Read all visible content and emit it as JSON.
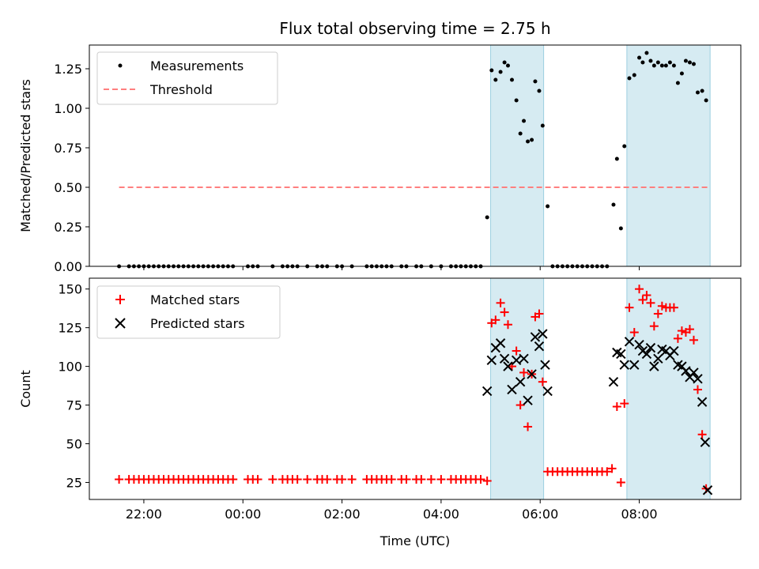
{
  "figure": {
    "title": "Flux total observing time = 2.75 h"
  },
  "chart_data": [
    {
      "type": "scatter",
      "title": "Flux total observing time = 2.75 h",
      "xlabel": "",
      "ylabel": "Matched/Predicted stars",
      "ylim": [
        0,
        1.4
      ],
      "yticks": [
        0.0,
        0.25,
        0.5,
        0.75,
        1.0,
        1.25
      ],
      "ytick_labels": [
        "0.00",
        "0.25",
        "0.50",
        "0.75",
        "1.00",
        "1.25"
      ],
      "grid": false,
      "legend": "top-left",
      "observing_windows": [
        [
          5.0,
          6.07
        ],
        [
          7.75,
          9.43
        ]
      ],
      "series": [
        {
          "name": "Measurements",
          "kind": "points",
          "color": "#000000",
          "points": [
            [
              -2.5,
              0
            ],
            [
              -2.3,
              0
            ],
            [
              -2.2,
              0
            ],
            [
              -2.1,
              0
            ],
            [
              -2.0,
              0
            ],
            [
              -1.9,
              0
            ],
            [
              -1.8,
              0
            ],
            [
              -1.7,
              0
            ],
            [
              -1.6,
              0
            ],
            [
              -1.5,
              0
            ],
            [
              -1.4,
              0
            ],
            [
              -1.3,
              0
            ],
            [
              -1.2,
              0
            ],
            [
              -1.1,
              0
            ],
            [
              -1.0,
              0
            ],
            [
              -0.9,
              0
            ],
            [
              -0.8,
              0
            ],
            [
              -0.7,
              0
            ],
            [
              -0.6,
              0
            ],
            [
              -0.5,
              0
            ],
            [
              -0.4,
              0
            ],
            [
              -0.3,
              0
            ],
            [
              -0.2,
              0
            ],
            [
              0.1,
              0
            ],
            [
              0.2,
              0
            ],
            [
              0.3,
              0
            ],
            [
              0.6,
              0
            ],
            [
              0.8,
              0
            ],
            [
              0.9,
              0
            ],
            [
              1.0,
              0
            ],
            [
              1.1,
              0
            ],
            [
              1.3,
              0
            ],
            [
              1.5,
              0
            ],
            [
              1.6,
              0
            ],
            [
              1.7,
              0
            ],
            [
              1.9,
              0
            ],
            [
              2.0,
              0
            ],
            [
              2.2,
              0
            ],
            [
              2.5,
              0
            ],
            [
              2.6,
              0
            ],
            [
              2.7,
              0
            ],
            [
              2.8,
              0
            ],
            [
              2.9,
              0
            ],
            [
              3.0,
              0
            ],
            [
              3.2,
              0
            ],
            [
              3.3,
              0
            ],
            [
              3.5,
              0
            ],
            [
              3.6,
              0
            ],
            [
              3.8,
              0
            ],
            [
              4.0,
              0
            ],
            [
              4.2,
              0
            ],
            [
              4.3,
              0
            ],
            [
              4.4,
              0
            ],
            [
              4.5,
              0
            ],
            [
              4.6,
              0
            ],
            [
              4.7,
              0
            ],
            [
              4.8,
              0
            ],
            [
              4.93,
              0.31
            ],
            [
              5.02,
              1.24
            ],
            [
              5.1,
              1.18
            ],
            [
              5.2,
              1.23
            ],
            [
              5.28,
              1.29
            ],
            [
              5.35,
              1.27
            ],
            [
              5.43,
              1.18
            ],
            [
              5.52,
              1.05
            ],
            [
              5.6,
              0.84
            ],
            [
              5.67,
              0.92
            ],
            [
              5.75,
              0.79
            ],
            [
              5.83,
              0.8
            ],
            [
              5.9,
              1.17
            ],
            [
              5.98,
              1.11
            ],
            [
              6.05,
              0.89
            ],
            [
              6.15,
              0.38
            ],
            [
              6.25,
              0
            ],
            [
              6.35,
              0
            ],
            [
              6.45,
              0
            ],
            [
              6.55,
              0
            ],
            [
              6.65,
              0
            ],
            [
              6.75,
              0
            ],
            [
              6.85,
              0
            ],
            [
              6.95,
              0
            ],
            [
              7.05,
              0
            ],
            [
              7.15,
              0
            ],
            [
              7.25,
              0
            ],
            [
              7.35,
              0
            ],
            [
              7.48,
              0.39
            ],
            [
              7.55,
              0.68
            ],
            [
              7.63,
              0.24
            ],
            [
              7.7,
              0.76
            ],
            [
              7.8,
              1.19
            ],
            [
              7.9,
              1.21
            ],
            [
              8.0,
              1.32
            ],
            [
              8.07,
              1.29
            ],
            [
              8.15,
              1.35
            ],
            [
              8.23,
              1.3
            ],
            [
              8.3,
              1.27
            ],
            [
              8.38,
              1.29
            ],
            [
              8.46,
              1.27
            ],
            [
              8.54,
              1.27
            ],
            [
              8.62,
              1.29
            ],
            [
              8.7,
              1.27
            ],
            [
              8.78,
              1.16
            ],
            [
              8.86,
              1.22
            ],
            [
              8.94,
              1.3
            ],
            [
              9.02,
              1.29
            ],
            [
              9.1,
              1.28
            ],
            [
              9.18,
              1.1
            ],
            [
              9.27,
              1.11
            ],
            [
              9.35,
              1.05
            ]
          ]
        },
        {
          "name": "Threshold",
          "kind": "dashed-line",
          "color": "#ff7f7f",
          "x": [
            -2.5,
            9.4
          ],
          "y": [
            0.5,
            0.5
          ]
        }
      ]
    },
    {
      "type": "scatter",
      "xlabel": "Time (UTC)",
      "ylabel": "Count",
      "ylim": [
        14,
        157
      ],
      "yticks": [
        25,
        50,
        75,
        100,
        125,
        150
      ],
      "ytick_labels": [
        "25",
        "50",
        "75",
        "100",
        "125",
        "150"
      ],
      "xticks": [
        -2,
        0,
        2,
        4,
        6,
        8
      ],
      "xtick_labels": [
        "22:00",
        "00:00",
        "02:00",
        "04:00",
        "06:00",
        "08:00"
      ],
      "xlim": [
        -3.1,
        10.05
      ],
      "grid": false,
      "legend": "top-left",
      "observing_windows": [
        [
          5.0,
          6.07
        ],
        [
          7.75,
          9.43
        ]
      ],
      "series": [
        {
          "name": "Matched stars",
          "marker": "plus",
          "color": "#ff0000",
          "points": [
            [
              -2.5,
              27
            ],
            [
              -2.3,
              27
            ],
            [
              -2.2,
              27
            ],
            [
              -2.1,
              27
            ],
            [
              -2.0,
              27
            ],
            [
              -1.9,
              27
            ],
            [
              -1.8,
              27
            ],
            [
              -1.7,
              27
            ],
            [
              -1.6,
              27
            ],
            [
              -1.5,
              27
            ],
            [
              -1.4,
              27
            ],
            [
              -1.3,
              27
            ],
            [
              -1.2,
              27
            ],
            [
              -1.1,
              27
            ],
            [
              -1.0,
              27
            ],
            [
              -0.9,
              27
            ],
            [
              -0.8,
              27
            ],
            [
              -0.7,
              27
            ],
            [
              -0.6,
              27
            ],
            [
              -0.5,
              27
            ],
            [
              -0.4,
              27
            ],
            [
              -0.3,
              27
            ],
            [
              -0.2,
              27
            ],
            [
              0.1,
              27
            ],
            [
              0.2,
              27
            ],
            [
              0.3,
              27
            ],
            [
              0.6,
              27
            ],
            [
              0.8,
              27
            ],
            [
              0.9,
              27
            ],
            [
              1.0,
              27
            ],
            [
              1.1,
              27
            ],
            [
              1.3,
              27
            ],
            [
              1.5,
              27
            ],
            [
              1.6,
              27
            ],
            [
              1.7,
              27
            ],
            [
              1.9,
              27
            ],
            [
              2.0,
              27
            ],
            [
              2.2,
              27
            ],
            [
              2.5,
              27
            ],
            [
              2.6,
              27
            ],
            [
              2.7,
              27
            ],
            [
              2.8,
              27
            ],
            [
              2.9,
              27
            ],
            [
              3.0,
              27
            ],
            [
              3.2,
              27
            ],
            [
              3.3,
              27
            ],
            [
              3.5,
              27
            ],
            [
              3.6,
              27
            ],
            [
              3.8,
              27
            ],
            [
              4.0,
              27
            ],
            [
              4.2,
              27
            ],
            [
              4.3,
              27
            ],
            [
              4.4,
              27
            ],
            [
              4.5,
              27
            ],
            [
              4.6,
              27
            ],
            [
              4.7,
              27
            ],
            [
              4.8,
              27
            ],
            [
              4.93,
              26
            ],
            [
              5.02,
              128
            ],
            [
              5.1,
              130
            ],
            [
              5.2,
              141
            ],
            [
              5.28,
              135
            ],
            [
              5.35,
              127
            ],
            [
              5.43,
              100
            ],
            [
              5.52,
              110
            ],
            [
              5.6,
              75
            ],
            [
              5.67,
              96
            ],
            [
              5.75,
              61
            ],
            [
              5.83,
              95
            ],
            [
              5.9,
              132
            ],
            [
              5.98,
              134
            ],
            [
              6.05,
              90
            ],
            [
              6.15,
              32
            ],
            [
              6.25,
              32
            ],
            [
              6.35,
              32
            ],
            [
              6.45,
              32
            ],
            [
              6.55,
              32
            ],
            [
              6.65,
              32
            ],
            [
              6.75,
              32
            ],
            [
              6.85,
              32
            ],
            [
              6.95,
              32
            ],
            [
              7.05,
              32
            ],
            [
              7.15,
              32
            ],
            [
              7.25,
              32
            ],
            [
              7.35,
              32
            ],
            [
              7.45,
              34
            ],
            [
              7.55,
              74
            ],
            [
              7.63,
              25
            ],
            [
              7.7,
              76
            ],
            [
              7.8,
              138
            ],
            [
              7.9,
              122
            ],
            [
              8.0,
              150
            ],
            [
              8.07,
              143
            ],
            [
              8.15,
              146
            ],
            [
              8.23,
              141
            ],
            [
              8.3,
              126
            ],
            [
              8.38,
              134
            ],
            [
              8.46,
              139
            ],
            [
              8.54,
              138
            ],
            [
              8.62,
              138
            ],
            [
              8.7,
              138
            ],
            [
              8.78,
              118
            ],
            [
              8.86,
              123
            ],
            [
              8.94,
              122
            ],
            [
              9.02,
              124
            ],
            [
              9.1,
              117
            ],
            [
              9.18,
              85
            ],
            [
              9.27,
              56
            ],
            [
              9.35,
              21
            ]
          ]
        },
        {
          "name": "Predicted stars",
          "marker": "x",
          "color": "#000000",
          "points": [
            [
              4.93,
              84
            ],
            [
              5.02,
              104
            ],
            [
              5.1,
              112
            ],
            [
              5.2,
              115
            ],
            [
              5.28,
              105
            ],
            [
              5.35,
              100
            ],
            [
              5.43,
              85
            ],
            [
              5.52,
              104
            ],
            [
              5.6,
              90
            ],
            [
              5.67,
              105
            ],
            [
              5.75,
              78
            ],
            [
              5.83,
              95
            ],
            [
              5.9,
              119
            ],
            [
              5.98,
              113
            ],
            [
              6.05,
              121
            ],
            [
              6.1,
              101
            ],
            [
              6.15,
              84
            ],
            [
              7.48,
              90
            ],
            [
              7.55,
              109
            ],
            [
              7.63,
              108
            ],
            [
              7.7,
              101
            ],
            [
              7.8,
              116
            ],
            [
              7.9,
              101
            ],
            [
              8.0,
              114
            ],
            [
              8.07,
              110
            ],
            [
              8.15,
              108
            ],
            [
              8.23,
              112
            ],
            [
              8.3,
              100
            ],
            [
              8.38,
              105
            ],
            [
              8.46,
              111
            ],
            [
              8.54,
              110
            ],
            [
              8.62,
              107
            ],
            [
              8.7,
              110
            ],
            [
              8.78,
              101
            ],
            [
              8.86,
              100
            ],
            [
              8.94,
              97
            ],
            [
              9.02,
              93
            ],
            [
              9.1,
              96
            ],
            [
              9.18,
              92
            ],
            [
              9.27,
              77
            ],
            [
              9.33,
              51
            ],
            [
              9.38,
              20
            ]
          ]
        }
      ]
    }
  ]
}
